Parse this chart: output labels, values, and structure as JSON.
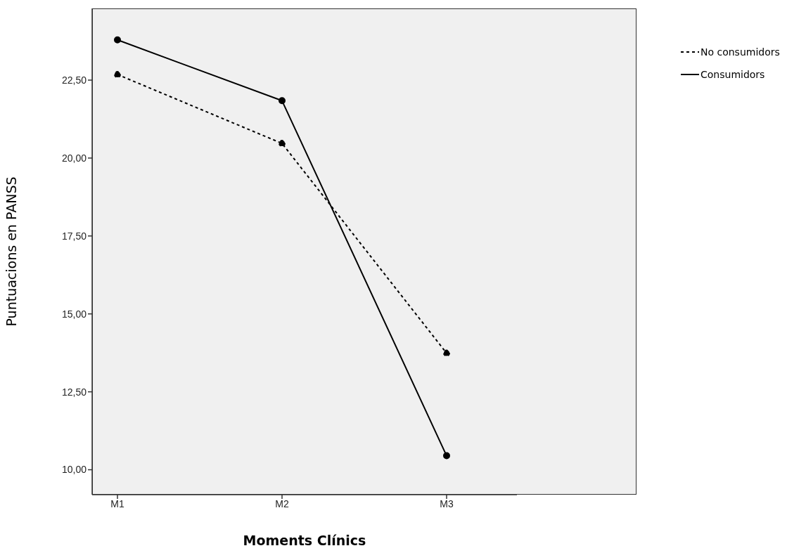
{
  "chart_data": {
    "type": "line",
    "xlabel": "Moments Clínics",
    "ylabel": "Puntuacions en PANSS",
    "categories": [
      "M1",
      "M2",
      "M3"
    ],
    "series": [
      {
        "name": "No consumidors",
        "color": "#000000",
        "line_style": "dotted",
        "values": [
          22.68,
          20.47,
          13.74
        ]
      },
      {
        "name": "Consumidors",
        "color": "#000000",
        "line_style": "solid",
        "values": [
          23.79,
          21.84,
          10.45
        ]
      }
    ],
    "ylim": [
      9.2,
      24.8
    ],
    "yticks": [
      {
        "value": 10,
        "label": "10,00"
      },
      {
        "value": 12.5,
        "label": "12,50"
      },
      {
        "value": 15,
        "label": "15,00"
      },
      {
        "value": 17.5,
        "label": "17,50"
      },
      {
        "value": 20,
        "label": "20,00"
      },
      {
        "value": 22.5,
        "label": "22,50"
      }
    ],
    "grid": false,
    "legend": "top right",
    "marker": "circle"
  }
}
